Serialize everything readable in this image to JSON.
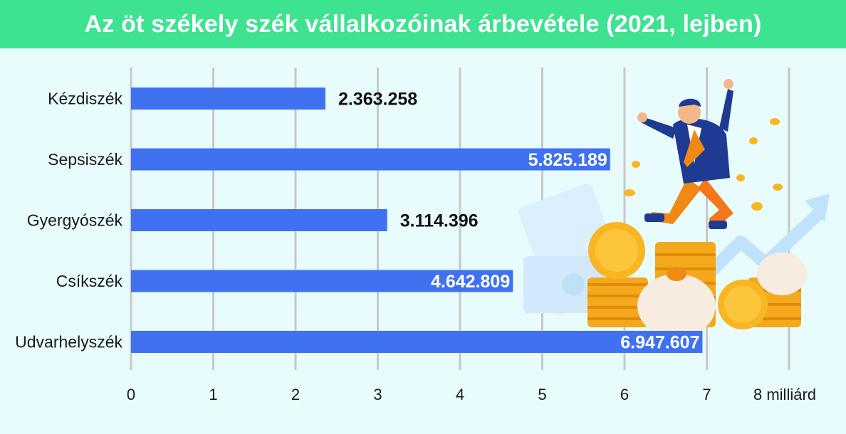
{
  "title": "Az öt székely szék vállalkozóinak árbevétele (2021, lejben)",
  "colors": {
    "background": "#e8fbfd",
    "title_bar": "#3de391",
    "bar": "#3f71f0",
    "grid": "#c8c8c8"
  },
  "chart_data": {
    "type": "bar",
    "orientation": "horizontal",
    "title": "Az öt székely szék vállalkozóinak árbevétele (2021, lejben)",
    "categories": [
      "Kézdiszék",
      "Sepsiszék",
      "Gyergyószék",
      "Csíkszék",
      "Udvarhelyszék"
    ],
    "values": [
      2363258,
      5825189,
      3114396,
      4642809,
      6947607
    ],
    "value_labels": [
      "2.363.258",
      "5.825.189",
      "3.114.396",
      "4.642.809",
      "6.947.607"
    ],
    "xlim": [
      0,
      8
    ],
    "x_unit_scale": "milliárd",
    "ticks": [
      "0",
      "1",
      "2",
      "3",
      "4",
      "5",
      "6",
      "7",
      "8 milliárd"
    ],
    "grid": true,
    "legend": "none"
  },
  "illustration": "jumping-businessman-with-coins-icon"
}
